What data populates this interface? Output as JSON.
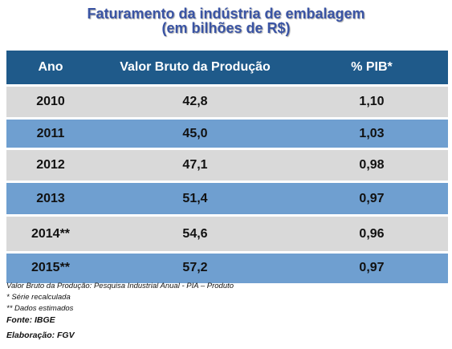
{
  "title_line1": "Faturamento da indústria de embalagem",
  "title_line2": "(em bilhões de R$)",
  "chart_data": {
    "type": "table",
    "columns": [
      "Ano",
      "Valor Bruto da Produção",
      "% PIB*"
    ],
    "rows": [
      [
        "2010",
        "42,8",
        "1,10"
      ],
      [
        "2011",
        "45,0",
        "1,03"
      ],
      [
        "2012",
        "47,1",
        "0,98"
      ],
      [
        "2013",
        "51,4",
        "0,97"
      ],
      [
        "2014**",
        "54,6",
        "0,96"
      ],
      [
        "2015**",
        "57,2",
        "0,97"
      ]
    ]
  },
  "notes": {
    "source_line": "Valor Bruto da Produção:  Pesquisa Industrial Anual  - PIA – Produto",
    "recalc": "* Série recalculada",
    "estimated": "** Dados estimados",
    "fonte": "Fonte: IBGE",
    "elaboracao": "Elaboração: FGV"
  },
  "colors": {
    "header_bg": "#1f5a8a",
    "row_gray": "#d9d9d9",
    "row_blue": "#6f9fd0",
    "title": "#3a54a4"
  }
}
